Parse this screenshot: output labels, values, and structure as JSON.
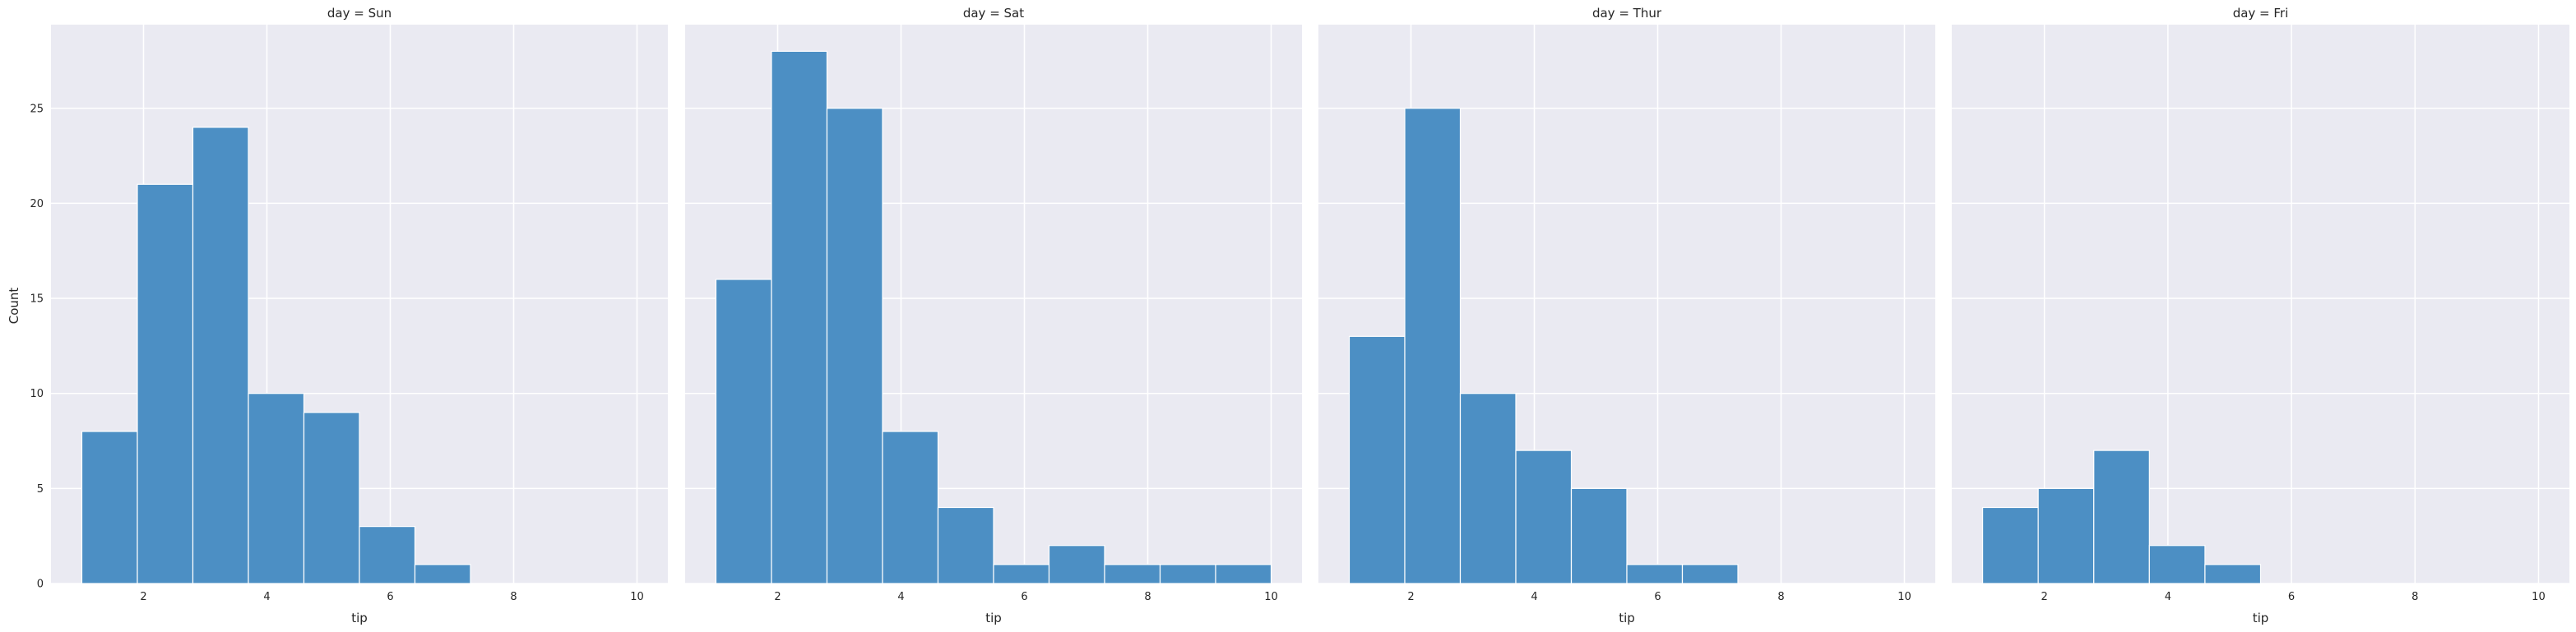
{
  "chart_data": {
    "type": "bar",
    "subtype": "histogram",
    "facet_variable": "day",
    "xlabel": "tip",
    "ylabel": "Count",
    "xlim": [
      0.5,
      10.5
    ],
    "ylim": [
      0,
      29.4
    ],
    "xticks": [
      2,
      4,
      6,
      8,
      10
    ],
    "yticks": [
      0,
      5,
      10,
      15,
      20,
      25
    ],
    "bin_edges": [
      1.0,
      1.9,
      2.8,
      3.7,
      4.6,
      5.5,
      6.4,
      7.3,
      8.2,
      9.1,
      10.0
    ],
    "grid": true,
    "colors": {
      "bar": "#4c8fc4",
      "bar_edge": "#ffffff",
      "panel_bg": "#eaeaf2",
      "grid": "#ffffff",
      "text": "#262626"
    },
    "facets": [
      {
        "title": "day = Sun",
        "counts": [
          8,
          21,
          24,
          10,
          9,
          3,
          1,
          0,
          0,
          0
        ]
      },
      {
        "title": "day = Sat",
        "counts": [
          16,
          28,
          25,
          8,
          4,
          1,
          2,
          1,
          1,
          1
        ]
      },
      {
        "title": "day = Thur",
        "counts": [
          13,
          25,
          10,
          7,
          5,
          1,
          1,
          0,
          0,
          0
        ]
      },
      {
        "title": "day = Fri",
        "counts": [
          4,
          5,
          7,
          2,
          1,
          0,
          0,
          0,
          0,
          0
        ]
      }
    ]
  }
}
